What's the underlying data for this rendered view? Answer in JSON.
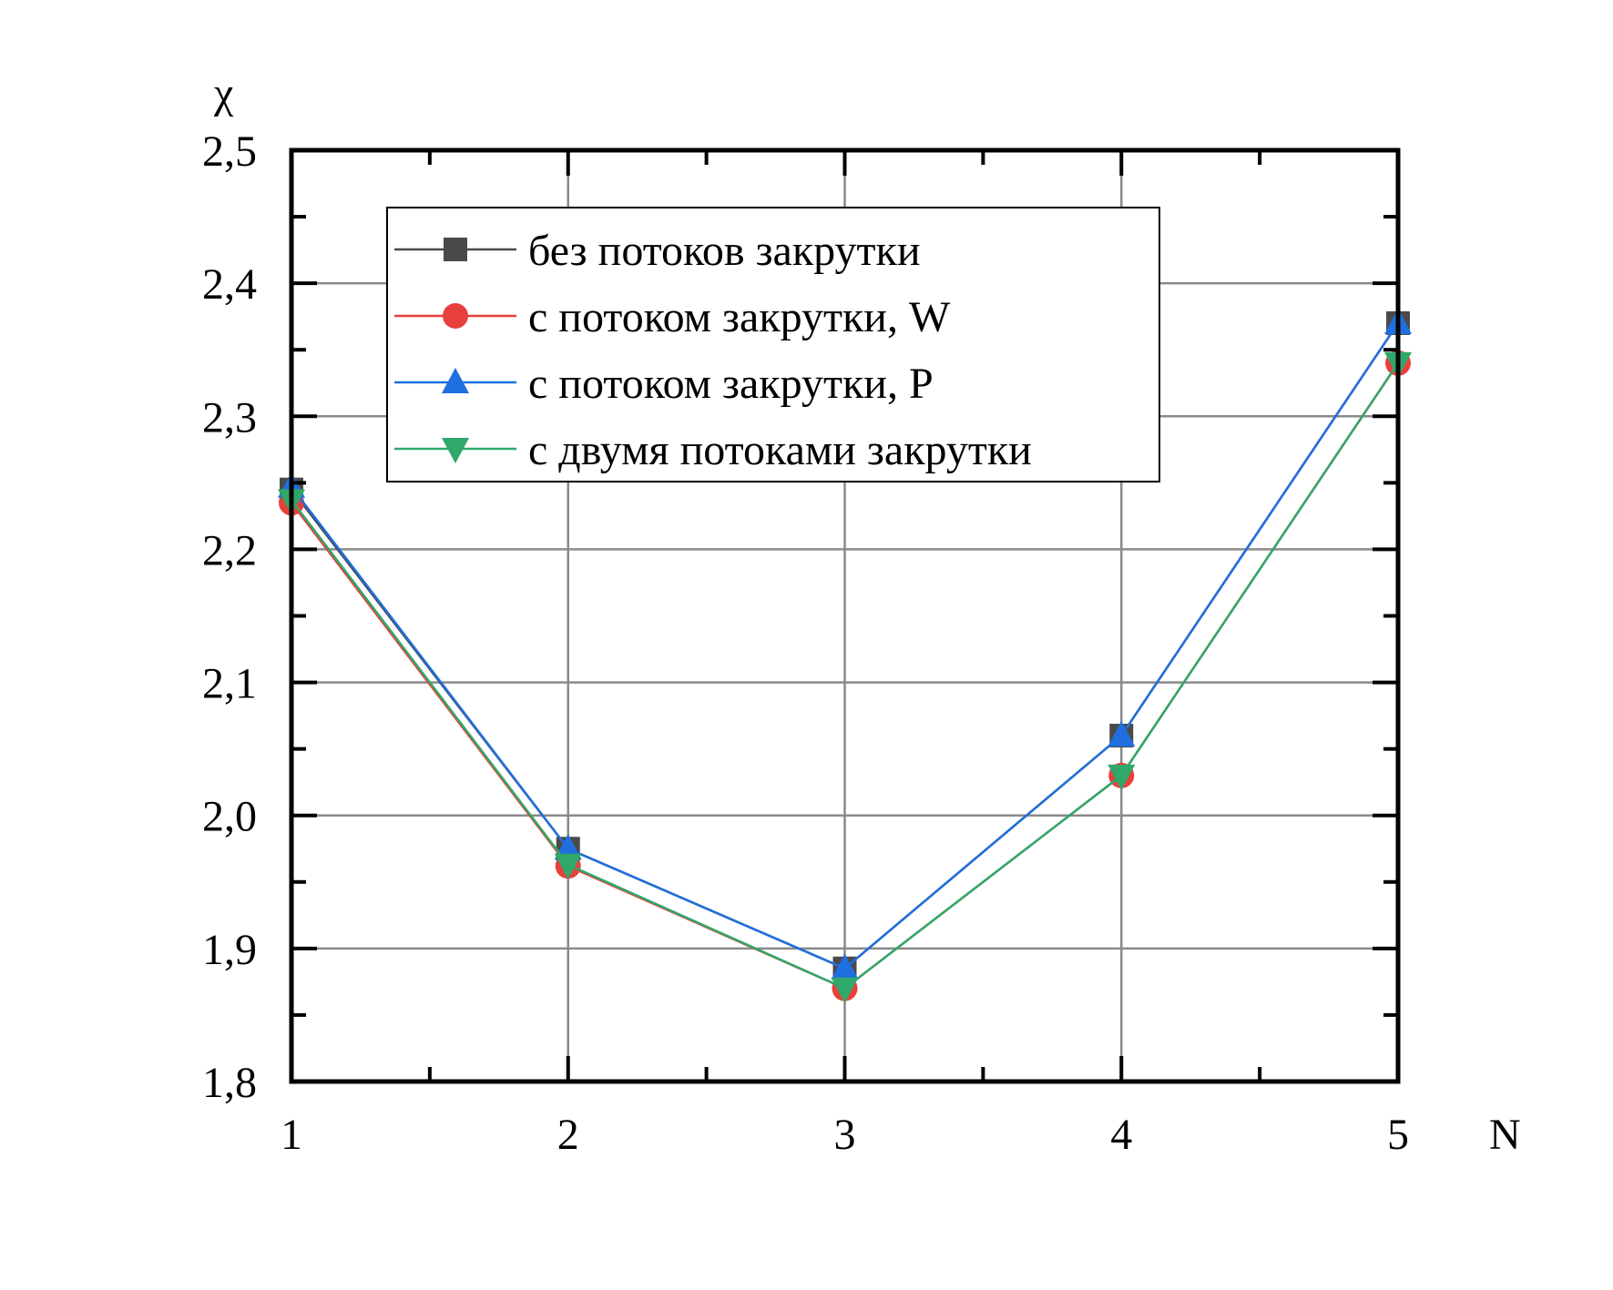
{
  "chart_data": {
    "type": "line",
    "xlabel": "N",
    "ylabel": "χ",
    "x": [
      1,
      2,
      3,
      4,
      5
    ],
    "xlim": [
      1,
      5
    ],
    "ylim": [
      1.8,
      2.5
    ],
    "x_ticks": [
      "1",
      "2",
      "3",
      "4",
      "5"
    ],
    "y_ticks": [
      "1,8",
      "1,9",
      "2,0",
      "2,1",
      "2,2",
      "2,3",
      "2,4",
      "2,5"
    ],
    "grid": true,
    "legend_position": "top-center",
    "series": [
      {
        "name": "без потоков закрутки",
        "color": "#4a4a4a",
        "marker": "square",
        "values": [
          2.245,
          1.975,
          1.885,
          2.06,
          2.37
        ]
      },
      {
        "name": "с потоком закрутки, W",
        "color": "#e8403c",
        "marker": "circle",
        "values": [
          2.235,
          1.962,
          1.87,
          2.03,
          2.34
        ]
      },
      {
        "name": "с потоком закрутки, P",
        "color": "#1f6fe0",
        "marker": "triangle-up",
        "values": [
          2.247,
          1.975,
          1.885,
          2.06,
          2.37
        ]
      },
      {
        "name": "с двумя потоками закрутки",
        "color": "#2fa86a",
        "marker": "triangle-down",
        "values": [
          2.237,
          1.963,
          1.87,
          2.03,
          2.34
        ]
      }
    ]
  }
}
